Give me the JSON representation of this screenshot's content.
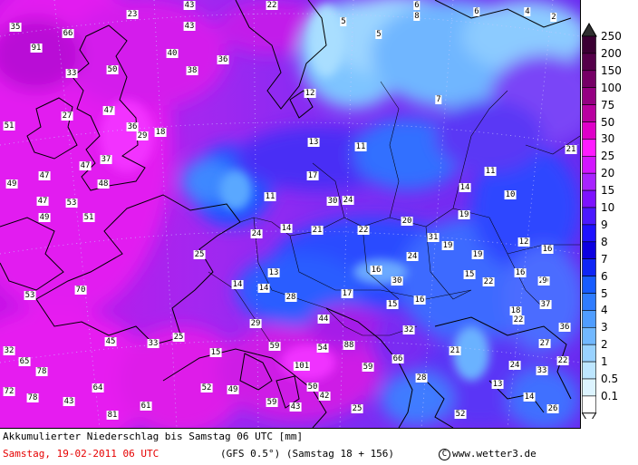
{
  "footer": {
    "title": "Akkumulierter Niederschlag bis Samstag 06 UTC [mm]",
    "date": "Samstag, 19-02-2011  06 UTC",
    "model": "(GFS 0.5°)  (Samstag 18 + 156)",
    "copyright_symbol": "C",
    "copyright": "www.wetter3.de"
  },
  "legend": {
    "top_arrow_color": "#303030",
    "bottom_arrow_color": "#ffffff",
    "classes": [
      {
        "label": "250",
        "color": "#3b0033"
      },
      {
        "label": "200",
        "color": "#55004a"
      },
      {
        "label": "150",
        "color": "#760066"
      },
      {
        "label": "100",
        "color": "#950082"
      },
      {
        "label": "75",
        "color": "#b900a0"
      },
      {
        "label": "50",
        "color": "#df00c8"
      },
      {
        "label": "30",
        "color": "#ff1cff"
      },
      {
        "label": "25",
        "color": "#d216ff"
      },
      {
        "label": "20",
        "color": "#a823ff"
      },
      {
        "label": "15",
        "color": "#7d12ff"
      },
      {
        "label": "10",
        "color": "#4b19ff"
      },
      {
        "label": "9",
        "color": "#1e12ff"
      },
      {
        "label": "8",
        "color": "#0c00e0"
      },
      {
        "label": "7",
        "color": "#0f26f5"
      },
      {
        "label": "6",
        "color": "#175cff"
      },
      {
        "label": "5",
        "color": "#2f7cff"
      },
      {
        "label": "4",
        "color": "#4f9dff"
      },
      {
        "label": "3",
        "color": "#71b8ff"
      },
      {
        "label": "2",
        "color": "#99d2ff"
      },
      {
        "label": "1",
        "color": "#bde6ff"
      },
      {
        "label": "0.5",
        "color": "#ddf4ff"
      },
      {
        "label": "0.1",
        "color": "#ffffff"
      }
    ]
  },
  "map_values": [
    {
      "v": "23"
    },
    {
      "v": "43"
    },
    {
      "v": "22"
    },
    {
      "v": "6"
    },
    {
      "v": "6"
    },
    {
      "v": "8"
    },
    {
      "v": "4"
    },
    {
      "v": "2"
    },
    {
      "v": "35"
    },
    {
      "v": "66"
    },
    {
      "v": "43"
    },
    {
      "v": "5"
    },
    {
      "v": "5"
    },
    {
      "v": "91"
    },
    {
      "v": "40"
    },
    {
      "v": "36"
    },
    {
      "v": "33"
    },
    {
      "v": "50"
    },
    {
      "v": "38"
    },
    {
      "v": "12"
    },
    {
      "v": "7"
    },
    {
      "v": "47"
    },
    {
      "v": "27"
    },
    {
      "v": "51"
    },
    {
      "v": "36"
    },
    {
      "v": "29"
    },
    {
      "v": "18"
    },
    {
      "v": "13"
    },
    {
      "v": "11"
    },
    {
      "v": "21"
    },
    {
      "v": "37"
    },
    {
      "v": "47"
    },
    {
      "v": "47"
    },
    {
      "v": "17"
    },
    {
      "v": "11"
    },
    {
      "v": "49"
    },
    {
      "v": "48"
    },
    {
      "v": "14"
    },
    {
      "v": "10"
    },
    {
      "v": "47"
    },
    {
      "v": "53"
    },
    {
      "v": "11"
    },
    {
      "v": "30"
    },
    {
      "v": "24"
    },
    {
      "v": "19"
    },
    {
      "v": "49"
    },
    {
      "v": "51"
    },
    {
      "v": "20"
    },
    {
      "v": "14"
    },
    {
      "v": "21"
    },
    {
      "v": "22"
    },
    {
      "v": "24"
    },
    {
      "v": "31"
    },
    {
      "v": "19"
    },
    {
      "v": "12"
    },
    {
      "v": "16"
    },
    {
      "v": "25"
    },
    {
      "v": "24"
    },
    {
      "v": "19"
    },
    {
      "v": "13"
    },
    {
      "v": "16"
    },
    {
      "v": "15"
    },
    {
      "v": "16"
    },
    {
      "v": "22"
    },
    {
      "v": "14"
    },
    {
      "v": "14"
    },
    {
      "v": "30"
    },
    {
      "v": "20"
    },
    {
      "v": "9"
    },
    {
      "v": "53"
    },
    {
      "v": "70"
    },
    {
      "v": "28"
    },
    {
      "v": "17"
    },
    {
      "v": "15"
    },
    {
      "v": "16"
    },
    {
      "v": "18"
    },
    {
      "v": "37"
    },
    {
      "v": "44"
    },
    {
      "v": "22"
    },
    {
      "v": "29"
    },
    {
      "v": "32"
    },
    {
      "v": "36"
    },
    {
      "v": "45"
    },
    {
      "v": "33"
    },
    {
      "v": "25"
    },
    {
      "v": "59"
    },
    {
      "v": "54"
    },
    {
      "v": "88"
    },
    {
      "v": "21"
    },
    {
      "v": "27"
    },
    {
      "v": "32"
    },
    {
      "v": "65"
    },
    {
      "v": "15"
    },
    {
      "v": "66"
    },
    {
      "v": "22"
    },
    {
      "v": "78"
    },
    {
      "v": "101"
    },
    {
      "v": "59"
    },
    {
      "v": "24"
    },
    {
      "v": "33"
    },
    {
      "v": "72"
    },
    {
      "v": "64"
    },
    {
      "v": "52"
    },
    {
      "v": "49"
    },
    {
      "v": "50"
    },
    {
      "v": "28"
    },
    {
      "v": "13"
    },
    {
      "v": "78"
    },
    {
      "v": "43"
    },
    {
      "v": "42"
    },
    {
      "v": "14"
    },
    {
      "v": "59"
    },
    {
      "v": "43"
    },
    {
      "v": "25"
    },
    {
      "v": "26"
    },
    {
      "v": "81"
    },
    {
      "v": "61"
    },
    {
      "v": "52"
    }
  ]
}
